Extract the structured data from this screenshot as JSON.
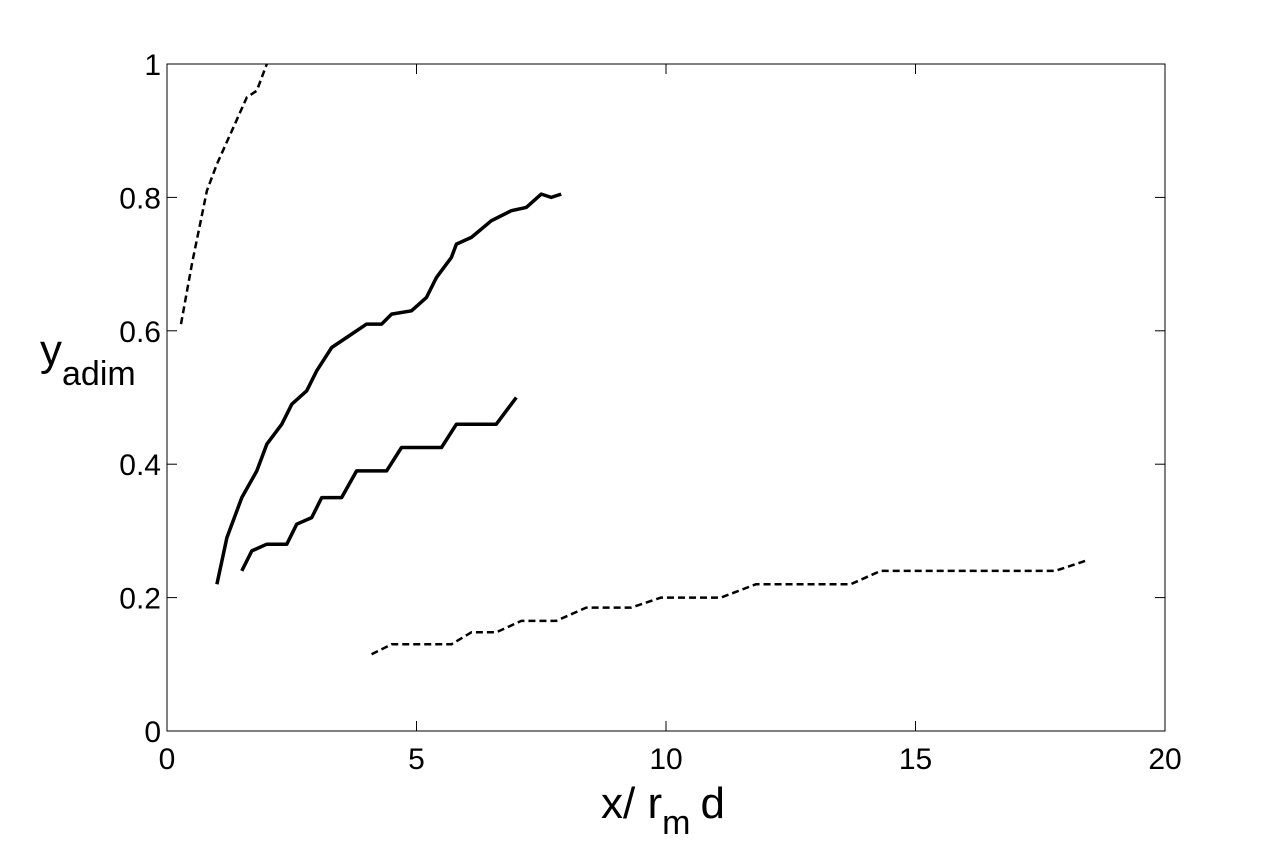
{
  "chart_data": {
    "type": "line",
    "xlabel": [
      "x/ r",
      "m",
      "d"
    ],
    "ylabel": [
      "y",
      "adim"
    ],
    "xlim": [
      0,
      20
    ],
    "ylim": [
      0,
      1
    ],
    "xticks": [
      0,
      5,
      10,
      15,
      20
    ],
    "yticks": [
      0,
      0.2,
      0.4,
      0.6,
      0.8,
      1
    ],
    "grid": false,
    "series": [
      {
        "color": "#000000",
        "dashed": true,
        "x": [
          0.28,
          0.5,
          0.8,
          1.0,
          1.3,
          1.6,
          1.8,
          2.0
        ],
        "values": [
          0.61,
          0.7,
          0.81,
          0.85,
          0.9,
          0.95,
          0.96,
          1.0
        ]
      },
      {
        "color": "#000000",
        "dashed": false,
        "x": [
          1.0,
          1.2,
          1.5,
          1.8,
          2.0,
          2.3,
          2.5,
          2.8,
          3.0,
          3.3,
          3.6,
          4.0,
          4.3,
          4.5,
          4.9,
          5.2,
          5.4,
          5.7,
          5.8,
          6.1,
          6.5,
          6.9,
          7.2,
          7.5,
          7.7,
          7.9
        ],
        "values": [
          0.22,
          0.29,
          0.35,
          0.39,
          0.43,
          0.46,
          0.49,
          0.51,
          0.54,
          0.575,
          0.59,
          0.61,
          0.61,
          0.625,
          0.63,
          0.65,
          0.68,
          0.71,
          0.73,
          0.74,
          0.765,
          0.78,
          0.785,
          0.805,
          0.8,
          0.805
        ]
      },
      {
        "color": "#000000",
        "dashed": false,
        "x": [
          1.5,
          1.7,
          2.0,
          2.4,
          2.6,
          2.9,
          3.1,
          3.5,
          3.8,
          4.4,
          4.7,
          5.5,
          5.8,
          6.6,
          6.8,
          7.0
        ],
        "values": [
          0.24,
          0.27,
          0.28,
          0.28,
          0.31,
          0.32,
          0.35,
          0.35,
          0.39,
          0.39,
          0.425,
          0.425,
          0.46,
          0.46,
          0.48,
          0.5
        ]
      },
      {
        "color": "#000000",
        "dashed": true,
        "x": [
          4.1,
          4.5,
          5.7,
          6.1,
          6.6,
          7.1,
          7.8,
          8.4,
          9.3,
          9.9,
          11.1,
          11.8,
          13.7,
          14.3,
          17.8,
          18.4
        ],
        "values": [
          0.115,
          0.13,
          0.13,
          0.148,
          0.148,
          0.165,
          0.165,
          0.185,
          0.185,
          0.2,
          0.2,
          0.22,
          0.22,
          0.24,
          0.24,
          0.255
        ]
      }
    ]
  }
}
